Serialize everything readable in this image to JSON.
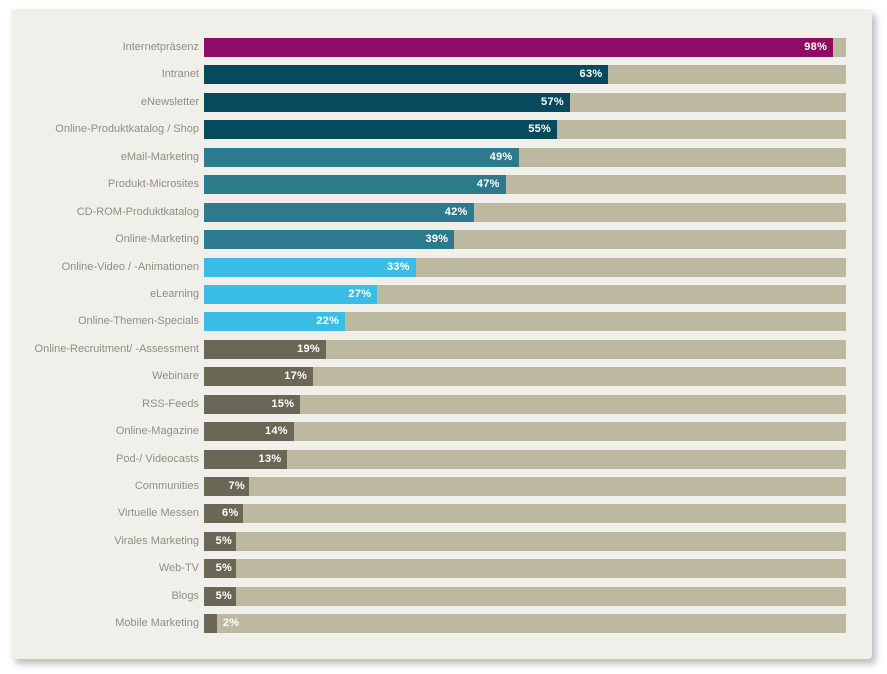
{
  "page": {
    "background_color": "#ffffff",
    "panel_background_color": "#f1efe9"
  },
  "chart_data": {
    "type": "bar",
    "orientation": "horizontal",
    "title": "",
    "xlabel": "",
    "ylabel": "",
    "xlim": [
      0,
      100
    ],
    "unit": "%",
    "grid": false,
    "legend": false,
    "track_color": "#bdb9a0",
    "category_label_color": "#8f8e86",
    "value_label_color": "#ffffff",
    "categories": [
      "Internetpräsenz",
      "Intranet",
      "eNewsletter",
      "Online-Produktkatalog / Shop",
      "eMail-Marketing",
      "Produkt-Microsites",
      "CD-ROM-Produktkatalog",
      "Online-Marketing",
      "Online-Video / -Animationen",
      "eLearning",
      "Online-Themen-Specials",
      "Online-Recruitment/ -Assessment",
      "Webinare",
      "RSS-Feeds",
      "Online-Magazine",
      "Pod-/ Videocasts",
      "Communities",
      "Virtuelle Messen",
      "Virales Marketing",
      "Web-TV",
      "Blogs",
      "Mobile Marketing"
    ],
    "values": [
      98,
      63,
      57,
      55,
      49,
      47,
      42,
      39,
      33,
      27,
      22,
      19,
      17,
      15,
      14,
      13,
      7,
      6,
      5,
      5,
      5,
      2
    ],
    "bar_colors": [
      "#8e0c64",
      "#07495d",
      "#07495d",
      "#07495d",
      "#2b7b8d",
      "#2b7b8d",
      "#2b7b8d",
      "#2b7b8d",
      "#3abde5",
      "#3abde5",
      "#3abde5",
      "#6b6756",
      "#6b6756",
      "#6b6756",
      "#6b6756",
      "#6b6756",
      "#6b6756",
      "#6b6756",
      "#6b6756",
      "#6b6756",
      "#6b6756",
      "#6b6756"
    ]
  }
}
